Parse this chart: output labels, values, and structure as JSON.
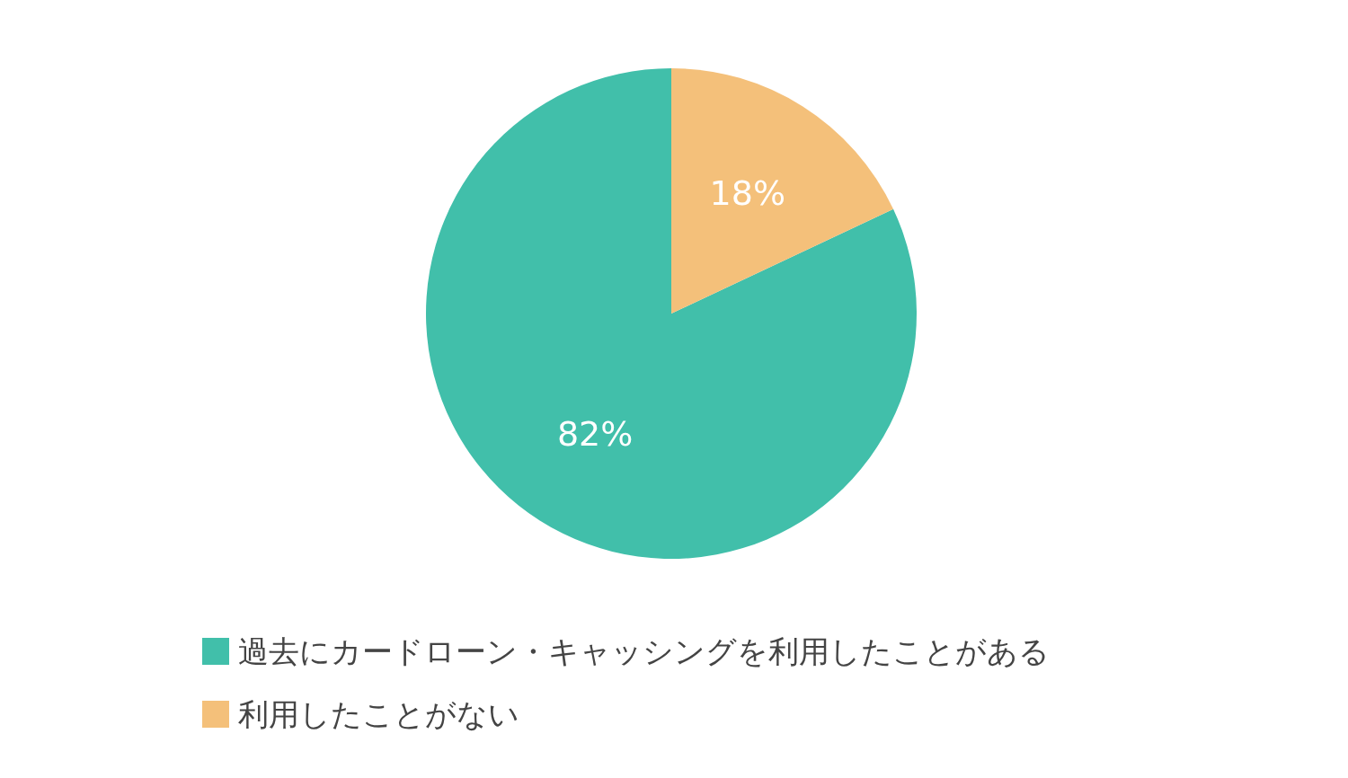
{
  "chart_data": {
    "type": "pie",
    "categories": [
      "過去にカードローン・キャッシングを利用したことがある",
      "利用したことがない"
    ],
    "values": [
      82,
      18
    ],
    "colors": [
      "#41bfaa",
      "#f4c07a"
    ],
    "value_labels": [
      "82%",
      "18%"
    ],
    "legend": "bottom"
  }
}
